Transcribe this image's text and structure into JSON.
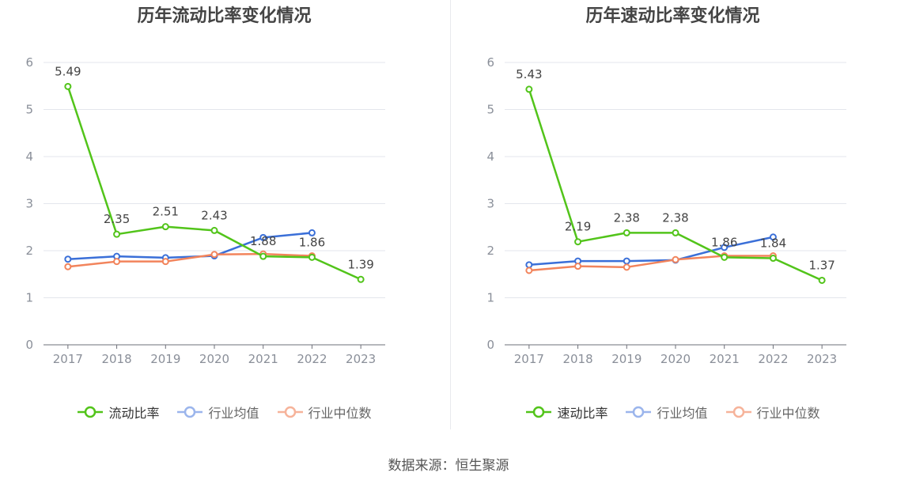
{
  "colors": {
    "main": "#52c41a",
    "avg": "#3a6fd8",
    "median": "#f2845c",
    "legend_avg": "#9bb5ec",
    "legend_median": "#f6b39a"
  },
  "source": "数据来源：恒生聚源",
  "chart_data": [
    {
      "type": "line",
      "title": "历年流动比率变化情况",
      "categories": [
        "2017",
        "2018",
        "2019",
        "2020",
        "2021",
        "2022",
        "2023"
      ],
      "ylim": [
        0,
        6
      ],
      "yticks": [
        0,
        1,
        2,
        3,
        4,
        5,
        6
      ],
      "series": [
        {
          "name": "流动比率",
          "values": [
            5.49,
            2.35,
            2.51,
            2.43,
            1.88,
            1.86,
            1.39
          ],
          "labels": [
            "5.49",
            "2.35",
            "2.51",
            "2.43",
            "1.88",
            "1.86",
            "1.39"
          ]
        },
        {
          "name": "行业均值",
          "values": [
            1.82,
            1.88,
            1.85,
            1.89,
            2.28,
            2.38,
            null
          ]
        },
        {
          "name": "行业中位数",
          "values": [
            1.66,
            1.77,
            1.77,
            1.92,
            1.93,
            1.89,
            null
          ]
        }
      ]
    },
    {
      "type": "line",
      "title": "历年速动比率变化情况",
      "categories": [
        "2017",
        "2018",
        "2019",
        "2020",
        "2021",
        "2022",
        "2023"
      ],
      "ylim": [
        0,
        6
      ],
      "yticks": [
        0,
        1,
        2,
        3,
        4,
        5,
        6
      ],
      "series": [
        {
          "name": "速动比率",
          "values": [
            5.43,
            2.19,
            2.38,
            2.38,
            1.86,
            1.84,
            1.37
          ],
          "labels": [
            "5.43",
            "2.19",
            "2.38",
            "2.38",
            "1.86",
            "1.84",
            "1.37"
          ]
        },
        {
          "name": "行业均值",
          "values": [
            1.7,
            1.78,
            1.78,
            1.8,
            2.07,
            2.29,
            null
          ]
        },
        {
          "name": "行业中位数",
          "values": [
            1.58,
            1.67,
            1.65,
            1.81,
            1.89,
            1.89,
            null
          ]
        }
      ]
    }
  ]
}
